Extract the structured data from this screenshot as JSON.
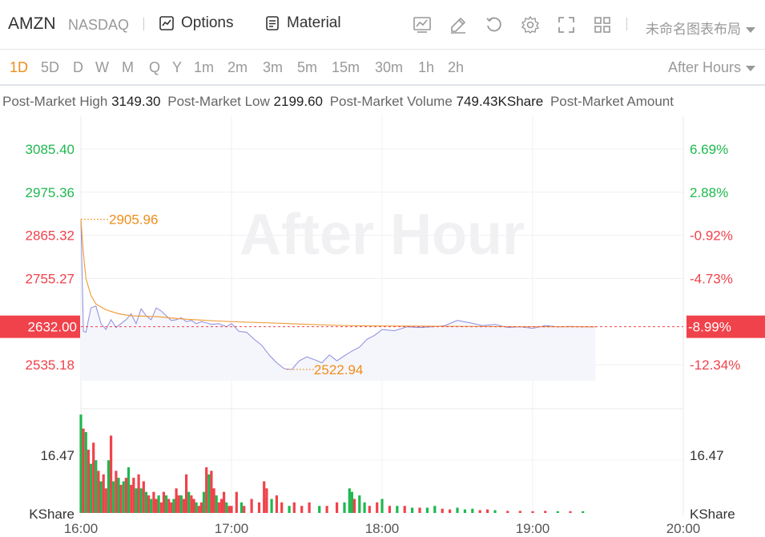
{
  "header": {
    "symbol": "AMZN",
    "exchange": "NASDAQ",
    "options_label": "Options",
    "material_label": "Material",
    "layout_name": "未命名图表布局"
  },
  "periods": [
    "1D",
    "5D",
    "D",
    "W",
    "M",
    "Q",
    "Y",
    "1m",
    "2m",
    "3m",
    "5m",
    "15m",
    "30m",
    "1h",
    "2h"
  ],
  "active_period": "1D",
  "session_label": "After Hours",
  "stats": [
    {
      "label": "Post-Market High",
      "value": "3149.30"
    },
    {
      "label": "Post-Market Low",
      "value": "2199.60"
    },
    {
      "label": "Post-Market Volume",
      "value": "749.43KShare"
    },
    {
      "label": "Post-Market Amount",
      "value": ""
    }
  ],
  "colors": {
    "up": "#1fb84f",
    "down": "#f0424b",
    "accent": "#f08c1a",
    "price_line": "#8c8cde",
    "avg_line": "#f0a040"
  },
  "chart_data": {
    "type": "line",
    "watermark": "After Hour",
    "x_ticks": [
      "16:00",
      "17:00",
      "18:00",
      "19:00",
      "20:00"
    ],
    "x_range": [
      "16:00",
      "20:00"
    ],
    "left_axis_ticks": [
      {
        "value": 3085.4,
        "label": "3085.40",
        "dir": "up"
      },
      {
        "value": 2975.36,
        "label": "2975.36",
        "dir": "up"
      },
      {
        "value": 2865.32,
        "label": "2865.32",
        "dir": "down"
      },
      {
        "value": 2755.27,
        "label": "2755.27",
        "dir": "down"
      },
      {
        "value": 2535.18,
        "label": "2535.18",
        "dir": "down"
      }
    ],
    "right_axis_ticks": [
      {
        "value": 3085.4,
        "label": "6.69%",
        "dir": "up"
      },
      {
        "value": 2975.36,
        "label": "2.88%",
        "dir": "up"
      },
      {
        "value": 2865.32,
        "label": "-0.92%",
        "dir": "down"
      },
      {
        "value": 2755.27,
        "label": "-4.73%",
        "dir": "down"
      },
      {
        "value": 2535.18,
        "label": "-12.34%",
        "dir": "down"
      }
    ],
    "current_price": {
      "value": 2632.0,
      "label": "2632.00",
      "pct_label": "-8.99%"
    },
    "high_marker": {
      "time": "16:00",
      "value": 2905.96,
      "label": "2905.96"
    },
    "low_marker": {
      "time": "17:22",
      "value": 2522.94,
      "label": "2522.94"
    },
    "price_series": {
      "times": [
        "16:00",
        "16:01",
        "16:02",
        "16:04",
        "16:06",
        "16:08",
        "16:10",
        "16:12",
        "16:14",
        "16:16",
        "16:18",
        "16:20",
        "16:22",
        "16:24",
        "16:26",
        "16:28",
        "16:30",
        "16:32",
        "16:34",
        "16:36",
        "16:38",
        "16:40",
        "16:42",
        "16:44",
        "16:46",
        "16:48",
        "16:50",
        "16:52",
        "16:55",
        "16:58",
        "17:00",
        "17:03",
        "17:06",
        "17:09",
        "17:12",
        "17:15",
        "17:18",
        "17:21",
        "17:24",
        "17:27",
        "17:30",
        "17:33",
        "17:36",
        "17:39",
        "17:42",
        "17:45",
        "17:48",
        "17:51",
        "17:54",
        "17:57",
        "18:00",
        "18:05",
        "18:10",
        "18:15",
        "18:20",
        "18:25",
        "18:30",
        "18:35",
        "18:40",
        "18:45",
        "18:50",
        "18:55",
        "19:00",
        "19:05",
        "19:10",
        "19:15",
        "19:20",
        "19:25"
      ],
      "values": [
        2905.96,
        2620,
        2618,
        2680,
        2685,
        2640,
        2625,
        2650,
        2630,
        2640,
        2650,
        2665,
        2640,
        2678,
        2660,
        2650,
        2680,
        2672,
        2660,
        2648,
        2650,
        2655,
        2645,
        2648,
        2640,
        2645,
        2642,
        2638,
        2640,
        2632,
        2640,
        2620,
        2618,
        2600,
        2585,
        2560,
        2540,
        2525,
        2522.94,
        2545,
        2555,
        2548,
        2540,
        2560,
        2545,
        2558,
        2570,
        2580,
        2600,
        2610,
        2625,
        2622,
        2632,
        2630,
        2632,
        2635,
        2648,
        2642,
        2635,
        2638,
        2630,
        2632,
        2628,
        2635,
        2632,
        2633,
        2632,
        2632
      ]
    },
    "avg_series": {
      "times": [
        "16:00",
        "16:01",
        "16:02",
        "16:04",
        "16:06",
        "16:10",
        "16:15",
        "16:20",
        "16:30",
        "16:40",
        "16:50",
        "17:00",
        "17:15",
        "17:30",
        "17:45",
        "18:00",
        "18:30",
        "19:00",
        "19:25"
      ],
      "values": [
        2905.96,
        2820,
        2755,
        2712,
        2690,
        2675,
        2665,
        2660,
        2658,
        2652,
        2648,
        2645,
        2642,
        2638,
        2635,
        2634,
        2633,
        2632,
        2632
      ]
    },
    "volume_axis": {
      "tick_value": 16.47,
      "tick_label": "16.47",
      "unit": "KShare"
    },
    "volume_bars": [
      {
        "t": "16:00",
        "v": 28.0,
        "dir": "up"
      },
      {
        "t": "16:01",
        "v": 24.0,
        "dir": "down"
      },
      {
        "t": "16:02",
        "v": 23.0,
        "dir": "up"
      },
      {
        "t": "16:03",
        "v": 18.0,
        "dir": "down"
      },
      {
        "t": "16:04",
        "v": 14.0,
        "dir": "up"
      },
      {
        "t": "16:05",
        "v": 20.0,
        "dir": "down"
      },
      {
        "t": "16:06",
        "v": 15.0,
        "dir": "up"
      },
      {
        "t": "16:07",
        "v": 12.0,
        "dir": "down"
      },
      {
        "t": "16:08",
        "v": 9.0,
        "dir": "up"
      },
      {
        "t": "16:09",
        "v": 11.0,
        "dir": "down"
      },
      {
        "t": "16:10",
        "v": 7.0,
        "dir": "down"
      },
      {
        "t": "16:11",
        "v": 15.0,
        "dir": "up"
      },
      {
        "t": "16:12",
        "v": 22.0,
        "dir": "down"
      },
      {
        "t": "16:13",
        "v": 9.0,
        "dir": "up"
      },
      {
        "t": "16:14",
        "v": 12.0,
        "dir": "down"
      },
      {
        "t": "16:15",
        "v": 10.0,
        "dir": "up"
      },
      {
        "t": "16:16",
        "v": 8.0,
        "dir": "down"
      },
      {
        "t": "16:17",
        "v": 9.0,
        "dir": "up"
      },
      {
        "t": "16:18",
        "v": 10.0,
        "dir": "down"
      },
      {
        "t": "16:19",
        "v": 13.0,
        "dir": "up"
      },
      {
        "t": "16:20",
        "v": 8.0,
        "dir": "down"
      },
      {
        "t": "16:21",
        "v": 10.0,
        "dir": "down"
      },
      {
        "t": "16:22",
        "v": 7.0,
        "dir": "up"
      },
      {
        "t": "16:23",
        "v": 11.0,
        "dir": "down"
      },
      {
        "t": "16:24",
        "v": 7.0,
        "dir": "up"
      },
      {
        "t": "16:25",
        "v": 9.0,
        "dir": "down"
      },
      {
        "t": "16:26",
        "v": 6.0,
        "dir": "up"
      },
      {
        "t": "16:27",
        "v": 5.0,
        "dir": "down"
      },
      {
        "t": "16:28",
        "v": 4.0,
        "dir": "up"
      },
      {
        "t": "16:29",
        "v": 6.0,
        "dir": "down"
      },
      {
        "t": "16:30",
        "v": 4.0,
        "dir": "down"
      },
      {
        "t": "16:31",
        "v": 5.0,
        "dir": "up"
      },
      {
        "t": "16:32",
        "v": 3.0,
        "dir": "down"
      },
      {
        "t": "16:33",
        "v": 6.0,
        "dir": "down"
      },
      {
        "t": "16:34",
        "v": 5.0,
        "dir": "up"
      },
      {
        "t": "16:35",
        "v": 4.0,
        "dir": "down"
      },
      {
        "t": "16:36",
        "v": 3.0,
        "dir": "down"
      },
      {
        "t": "16:37",
        "v": 4.0,
        "dir": "up"
      },
      {
        "t": "16:38",
        "v": 7.0,
        "dir": "down"
      },
      {
        "t": "16:39",
        "v": 5.0,
        "dir": "down"
      },
      {
        "t": "16:40",
        "v": 5.0,
        "dir": "up"
      },
      {
        "t": "16:41",
        "v": 4.0,
        "dir": "down"
      },
      {
        "t": "16:42",
        "v": 11.0,
        "dir": "down"
      },
      {
        "t": "16:43",
        "v": 6.0,
        "dir": "up"
      },
      {
        "t": "16:44",
        "v": 5.0,
        "dir": "down"
      },
      {
        "t": "16:45",
        "v": 4.0,
        "dir": "down"
      },
      {
        "t": "16:46",
        "v": 3.0,
        "dir": "up"
      },
      {
        "t": "16:47",
        "v": 2.0,
        "dir": "down"
      },
      {
        "t": "16:48",
        "v": 3.0,
        "dir": "down"
      },
      {
        "t": "16:49",
        "v": 6.0,
        "dir": "up"
      },
      {
        "t": "16:50",
        "v": 13.0,
        "dir": "down"
      },
      {
        "t": "16:51",
        "v": 11.0,
        "dir": "up"
      },
      {
        "t": "16:52",
        "v": 12.0,
        "dir": "down"
      },
      {
        "t": "16:53",
        "v": 7.0,
        "dir": "down"
      },
      {
        "t": "16:54",
        "v": 5.0,
        "dir": "up"
      },
      {
        "t": "16:55",
        "v": 3.0,
        "dir": "down"
      },
      {
        "t": "16:56",
        "v": 4.0,
        "dir": "down"
      },
      {
        "t": "16:57",
        "v": 6.0,
        "dir": "down"
      },
      {
        "t": "16:58",
        "v": 3.0,
        "dir": "up"
      },
      {
        "t": "16:59",
        "v": 2.0,
        "dir": "down"
      },
      {
        "t": "17:00",
        "v": 2.0,
        "dir": "down"
      },
      {
        "t": "17:02",
        "v": 6.0,
        "dir": "down"
      },
      {
        "t": "17:04",
        "v": 3.0,
        "dir": "up"
      },
      {
        "t": "17:05",
        "v": 2.0,
        "dir": "down"
      },
      {
        "t": "17:08",
        "v": 4.0,
        "dir": "down"
      },
      {
        "t": "17:11",
        "v": 3.0,
        "dir": "down"
      },
      {
        "t": "17:13",
        "v": 9.0,
        "dir": "down"
      },
      {
        "t": "17:14",
        "v": 7.0,
        "dir": "down"
      },
      {
        "t": "17:16",
        "v": 4.0,
        "dir": "up"
      },
      {
        "t": "17:18",
        "v": 5.0,
        "dir": "down"
      },
      {
        "t": "17:20",
        "v": 3.0,
        "dir": "down"
      },
      {
        "t": "17:23",
        "v": 2.0,
        "dir": "up"
      },
      {
        "t": "17:25",
        "v": 3.0,
        "dir": "down"
      },
      {
        "t": "17:28",
        "v": 2.0,
        "dir": "down"
      },
      {
        "t": "17:31",
        "v": 3.0,
        "dir": "down"
      },
      {
        "t": "17:35",
        "v": 2.0,
        "dir": "up"
      },
      {
        "t": "17:38",
        "v": 2.0,
        "dir": "down"
      },
      {
        "t": "17:42",
        "v": 3.0,
        "dir": "down"
      },
      {
        "t": "17:45",
        "v": 3.0,
        "dir": "up"
      },
      {
        "t": "17:47",
        "v": 7.0,
        "dir": "up"
      },
      {
        "t": "17:48",
        "v": 6.0,
        "dir": "up"
      },
      {
        "t": "17:49",
        "v": 4.0,
        "dir": "down"
      },
      {
        "t": "17:51",
        "v": 5.0,
        "dir": "up"
      },
      {
        "t": "17:53",
        "v": 3.0,
        "dir": "up"
      },
      {
        "t": "17:55",
        "v": 2.0,
        "dir": "down"
      },
      {
        "t": "17:58",
        "v": 3.0,
        "dir": "down"
      },
      {
        "t": "18:00",
        "v": 4.0,
        "dir": "up"
      },
      {
        "t": "18:03",
        "v": 2.0,
        "dir": "down"
      },
      {
        "t": "18:06",
        "v": 2.0,
        "dir": "up"
      },
      {
        "t": "18:09",
        "v": 2.0,
        "dir": "down"
      },
      {
        "t": "18:12",
        "v": 1.5,
        "dir": "up"
      },
      {
        "t": "18:15",
        "v": 1.5,
        "dir": "down"
      },
      {
        "t": "18:18",
        "v": 1.5,
        "dir": "up"
      },
      {
        "t": "18:21",
        "v": 2.0,
        "dir": "up"
      },
      {
        "t": "18:24",
        "v": 1.2,
        "dir": "down"
      },
      {
        "t": "18:27",
        "v": 1.0,
        "dir": "down"
      },
      {
        "t": "18:30",
        "v": 1.5,
        "dir": "up"
      },
      {
        "t": "18:33",
        "v": 1.0,
        "dir": "up"
      },
      {
        "t": "18:36",
        "v": 1.2,
        "dir": "up"
      },
      {
        "t": "18:39",
        "v": 0.8,
        "dir": "down"
      },
      {
        "t": "18:42",
        "v": 1.0,
        "dir": "down"
      },
      {
        "t": "18:45",
        "v": 0.8,
        "dir": "up"
      },
      {
        "t": "18:50",
        "v": 0.6,
        "dir": "down"
      },
      {
        "t": "18:55",
        "v": 0.6,
        "dir": "down"
      },
      {
        "t": "19:00",
        "v": 0.5,
        "dir": "down"
      },
      {
        "t": "19:05",
        "v": 0.6,
        "dir": "down"
      },
      {
        "t": "19:10",
        "v": 0.5,
        "dir": "up"
      },
      {
        "t": "19:15",
        "v": 0.5,
        "dir": "down"
      },
      {
        "t": "19:20",
        "v": 0.5,
        "dir": "up"
      }
    ]
  }
}
